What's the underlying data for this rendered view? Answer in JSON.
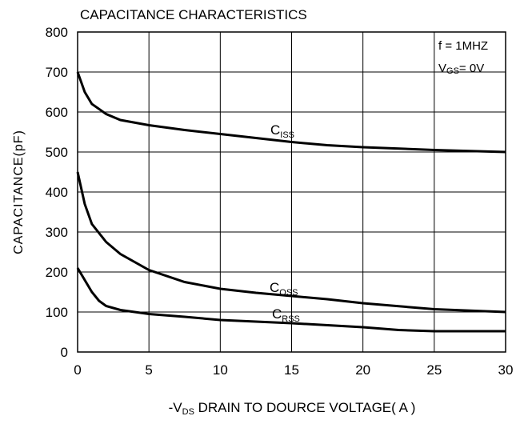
{
  "chart_data": {
    "type": "line",
    "title": "CAPACITANCE CHARACTERISTICS",
    "y_label": "CAPACITANCE(pF)",
    "x_label": [
      "-V",
      "DS",
      " DRAIN TO DOURCE VOLTAGE( A )"
    ],
    "annotations": [
      [
        "f = 1MHZ"
      ],
      [
        "V",
        "GS",
        "= 0V"
      ]
    ],
    "xlim": [
      0,
      30
    ],
    "xticks": [
      0,
      5,
      10,
      15,
      20,
      25,
      30
    ],
    "ylim": [
      0,
      800
    ],
    "yticks": [
      0,
      100,
      200,
      300,
      400,
      500,
      600,
      700,
      800
    ],
    "grid": true,
    "series": [
      {
        "name": [
          "C",
          "ISS"
        ],
        "color": "#000000",
        "x": [
          0,
          0.5,
          1,
          2,
          3,
          5,
          7.5,
          10,
          12.5,
          15,
          17.5,
          20,
          25,
          30
        ],
        "values": [
          700,
          650,
          620,
          595,
          580,
          567,
          555,
          545,
          535,
          525,
          517,
          512,
          505,
          500
        ]
      },
      {
        "name": [
          "C",
          "OSS"
        ],
        "color": "#000000",
        "x": [
          0,
          0.5,
          1,
          2,
          3,
          5,
          7.5,
          10,
          12.5,
          15,
          17.5,
          20,
          25,
          30
        ],
        "values": [
          450,
          370,
          320,
          275,
          245,
          205,
          175,
          158,
          148,
          140,
          132,
          122,
          107,
          100
        ]
      },
      {
        "name": [
          "C",
          "RSS"
        ],
        "color": "#000000",
        "x": [
          0,
          0.5,
          1,
          1.5,
          2,
          3,
          5,
          7.5,
          10,
          15,
          20,
          22.5,
          25,
          30
        ],
        "values": [
          210,
          180,
          150,
          128,
          115,
          105,
          95,
          88,
          80,
          72,
          62,
          55,
          52,
          52
        ]
      }
    ]
  }
}
